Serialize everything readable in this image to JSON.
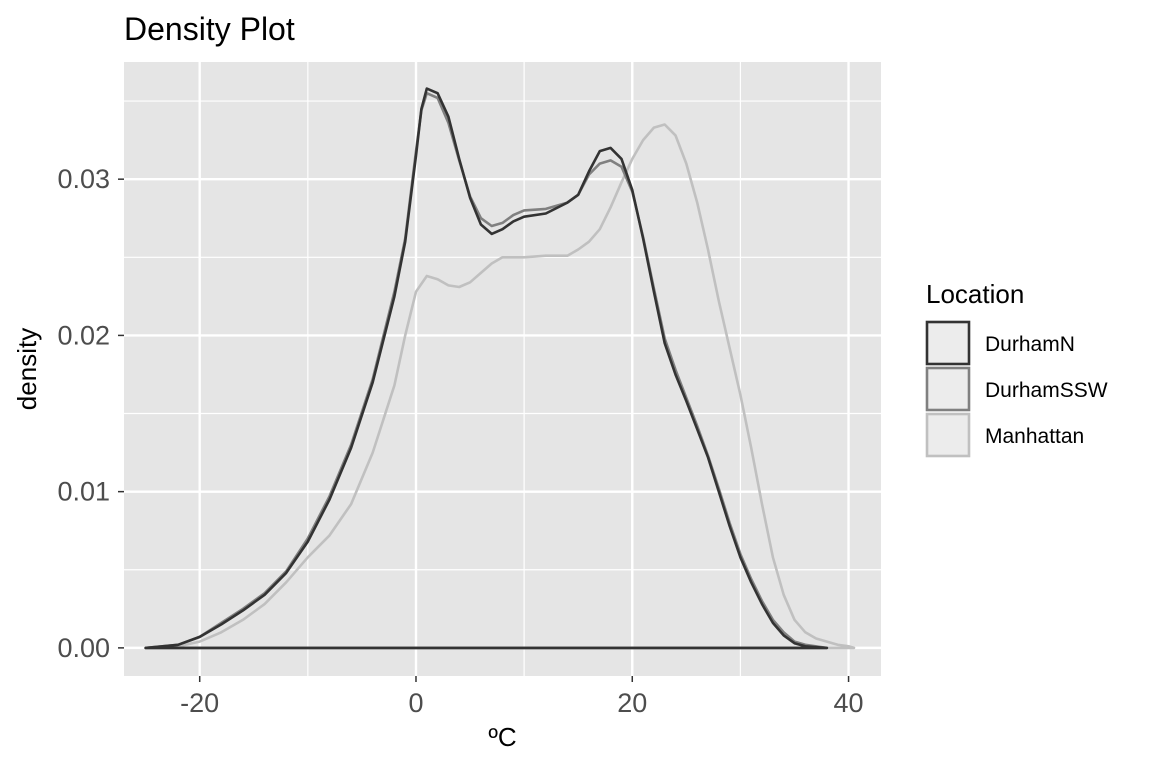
{
  "chart_data": {
    "type": "line",
    "title": "Density Plot",
    "xlabel": "ºC",
    "ylabel": "density",
    "xlim": [
      -27,
      43
    ],
    "ylim": [
      -0.0018,
      0.0375
    ],
    "x_ticks": [
      -20,
      0,
      20,
      40
    ],
    "x_tick_labels": [
      "-20",
      "0",
      "20",
      "40"
    ],
    "y_ticks": [
      0.0,
      0.01,
      0.02,
      0.03
    ],
    "y_tick_labels": [
      "0.00",
      "0.01",
      "0.02",
      "0.03"
    ],
    "grid": true,
    "legend": {
      "title": "Location",
      "position": "right"
    },
    "series": [
      {
        "name": "DurhamN",
        "color": "#333333",
        "points": [
          [
            -25,
            0
          ],
          [
            -22,
            0.0002
          ],
          [
            -20,
            0.0007
          ],
          [
            -18,
            0.0015
          ],
          [
            -16,
            0.0024
          ],
          [
            -14,
            0.0034
          ],
          [
            -12,
            0.0048
          ],
          [
            -10,
            0.0068
          ],
          [
            -8,
            0.0095
          ],
          [
            -6,
            0.0128
          ],
          [
            -4,
            0.017
          ],
          [
            -2,
            0.0225
          ],
          [
            -1,
            0.026
          ],
          [
            0,
            0.0315
          ],
          [
            0.5,
            0.0345
          ],
          [
            1,
            0.0358
          ],
          [
            2,
            0.0355
          ],
          [
            3,
            0.034
          ],
          [
            4,
            0.0313
          ],
          [
            5,
            0.0288
          ],
          [
            6,
            0.0271
          ],
          [
            7,
            0.0265
          ],
          [
            8,
            0.0268
          ],
          [
            9,
            0.0273
          ],
          [
            10,
            0.0276
          ],
          [
            12,
            0.0278
          ],
          [
            14,
            0.0285
          ],
          [
            15,
            0.029
          ],
          [
            16,
            0.0305
          ],
          [
            17,
            0.0318
          ],
          [
            18,
            0.032
          ],
          [
            19,
            0.0313
          ],
          [
            20,
            0.0293
          ],
          [
            21,
            0.0262
          ],
          [
            22,
            0.0228
          ],
          [
            23,
            0.0195
          ],
          [
            24,
            0.0175
          ],
          [
            25,
            0.0158
          ],
          [
            26,
            0.014
          ],
          [
            27,
            0.0122
          ],
          [
            28,
            0.01
          ],
          [
            29,
            0.0078
          ],
          [
            30,
            0.0058
          ],
          [
            31,
            0.0042
          ],
          [
            32,
            0.0028
          ],
          [
            33,
            0.0016
          ],
          [
            34,
            0.0008
          ],
          [
            35,
            0.0003
          ],
          [
            36,
            0.0001
          ],
          [
            38,
            0
          ]
        ]
      },
      {
        "name": "DurhamSSW",
        "color": "#808080",
        "points": [
          [
            -25,
            0
          ],
          [
            -22,
            0.0002
          ],
          [
            -20,
            0.0007
          ],
          [
            -18,
            0.0016
          ],
          [
            -16,
            0.0025
          ],
          [
            -14,
            0.0035
          ],
          [
            -12,
            0.0049
          ],
          [
            -10,
            0.007
          ],
          [
            -8,
            0.0097
          ],
          [
            -6,
            0.013
          ],
          [
            -4,
            0.0172
          ],
          [
            -2,
            0.0228
          ],
          [
            -1,
            0.0262
          ],
          [
            0,
            0.0318
          ],
          [
            0.5,
            0.0344
          ],
          [
            1,
            0.0355
          ],
          [
            2,
            0.0352
          ],
          [
            3,
            0.0336
          ],
          [
            4,
            0.0312
          ],
          [
            5,
            0.0289
          ],
          [
            6,
            0.0275
          ],
          [
            7,
            0.027
          ],
          [
            8,
            0.0272
          ],
          [
            9,
            0.0277
          ],
          [
            10,
            0.028
          ],
          [
            12,
            0.0281
          ],
          [
            14,
            0.0285
          ],
          [
            15,
            0.029
          ],
          [
            16,
            0.0303
          ],
          [
            17,
            0.031
          ],
          [
            18,
            0.0312
          ],
          [
            19,
            0.0308
          ],
          [
            20,
            0.0292
          ],
          [
            21,
            0.0263
          ],
          [
            22,
            0.023
          ],
          [
            23,
            0.0198
          ],
          [
            24,
            0.0178
          ],
          [
            25,
            0.016
          ],
          [
            26,
            0.0142
          ],
          [
            27,
            0.0123
          ],
          [
            28,
            0.0102
          ],
          [
            29,
            0.008
          ],
          [
            30,
            0.006
          ],
          [
            31,
            0.0044
          ],
          [
            32,
            0.003
          ],
          [
            33,
            0.0018
          ],
          [
            34,
            0.001
          ],
          [
            35,
            0.0004
          ],
          [
            36,
            0.0002
          ],
          [
            38,
            0
          ]
        ]
      },
      {
        "name": "Manhattan",
        "color": "#c0c0c0",
        "points": [
          [
            -25,
            0
          ],
          [
            -22,
            0.0001
          ],
          [
            -20,
            0.0004
          ],
          [
            -18,
            0.001
          ],
          [
            -16,
            0.0018
          ],
          [
            -14,
            0.0028
          ],
          [
            -12,
            0.0042
          ],
          [
            -10,
            0.0058
          ],
          [
            -8,
            0.0072
          ],
          [
            -6,
            0.0092
          ],
          [
            -4,
            0.0125
          ],
          [
            -2,
            0.0168
          ],
          [
            -1,
            0.02
          ],
          [
            0,
            0.0228
          ],
          [
            1,
            0.0238
          ],
          [
            2,
            0.0236
          ],
          [
            3,
            0.0232
          ],
          [
            4,
            0.0231
          ],
          [
            5,
            0.0234
          ],
          [
            6,
            0.024
          ],
          [
            7,
            0.0246
          ],
          [
            8,
            0.025
          ],
          [
            10,
            0.025
          ],
          [
            12,
            0.0251
          ],
          [
            14,
            0.0251
          ],
          [
            15,
            0.0255
          ],
          [
            16,
            0.026
          ],
          [
            17,
            0.0268
          ],
          [
            18,
            0.0282
          ],
          [
            19,
            0.0298
          ],
          [
            20,
            0.0313
          ],
          [
            21,
            0.0325
          ],
          [
            22,
            0.0333
          ],
          [
            23,
            0.0335
          ],
          [
            24,
            0.0328
          ],
          [
            25,
            0.031
          ],
          [
            26,
            0.0285
          ],
          [
            27,
            0.0255
          ],
          [
            28,
            0.0222
          ],
          [
            29,
            0.0192
          ],
          [
            30,
            0.0162
          ],
          [
            31,
            0.0128
          ],
          [
            32,
            0.0092
          ],
          [
            33,
            0.0058
          ],
          [
            34,
            0.0034
          ],
          [
            35,
            0.0018
          ],
          [
            36,
            0.001
          ],
          [
            37,
            0.0006
          ],
          [
            38,
            0.0004
          ],
          [
            39,
            0.0002
          ],
          [
            40,
            0.0001
          ],
          [
            40.5,
            0
          ]
        ]
      }
    ]
  }
}
